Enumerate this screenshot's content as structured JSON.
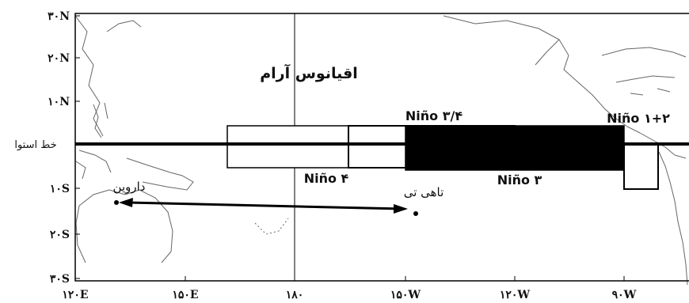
{
  "map": {
    "ocean_label": "اقیانوس آرام",
    "equator_label": "خط استوا",
    "lat_ticks": [
      {
        "label": "۳۰N",
        "lat": 30
      },
      {
        "label": "۲۰N",
        "lat": 20
      },
      {
        "label": "۱۰N",
        "lat": 10
      },
      {
        "label": "۱۰S",
        "lat": -10
      },
      {
        "label": "۲۰S",
        "lat": -20
      },
      {
        "label": "۳۰S",
        "lat": -30
      }
    ],
    "lon_ticks": [
      {
        "label": "۱۲۰E",
        "lon": 120
      },
      {
        "label": "۱۵۰E",
        "lon": 150
      },
      {
        "label": "۱۸۰",
        "lon": 180
      },
      {
        "label": "۱۵۰W",
        "lon": 210
      },
      {
        "label": "۱۲۰W",
        "lon": 240
      },
      {
        "label": "۹۰W",
        "lon": 270
      }
    ],
    "regions": {
      "nino4": {
        "label": "Niño ۴",
        "lon_range": [
          160,
          210
        ],
        "lat_range": [
          -5,
          5
        ]
      },
      "nino34": {
        "label": "Niño ۳/۴",
        "lon_range": [
          190,
          240
        ],
        "lat_range": [
          -5,
          5
        ]
      },
      "nino3": {
        "label": "Niño ۳",
        "lon_range": [
          210,
          270
        ],
        "lat_range": [
          -5,
          5
        ]
      },
      "nino12": {
        "label": "Niño ۱+۲",
        "lon_range": [
          270,
          280
        ],
        "lat_range": [
          -10,
          0
        ]
      }
    },
    "places": {
      "darwin": {
        "label": "داروین"
      },
      "tahiti": {
        "label": "تاهی تی"
      }
    },
    "colors": {
      "nino3_fill": "#000000",
      "frame": "#000000",
      "coast": "#666666"
    }
  }
}
